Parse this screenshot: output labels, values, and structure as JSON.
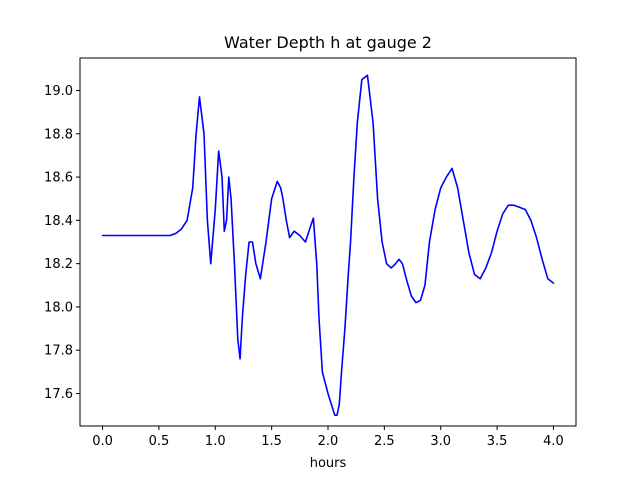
{
  "chart_data": {
    "type": "line",
    "title": "Water Depth h at gauge 2",
    "xlabel": "hours",
    "ylabel": "",
    "xlim": [
      -0.2,
      4.2
    ],
    "ylim": [
      17.45,
      19.15
    ],
    "x_ticks": [
      0.0,
      0.5,
      1.0,
      1.5,
      2.0,
      2.5,
      3.0,
      3.5,
      4.0
    ],
    "x_tick_labels": [
      "0.0",
      "0.5",
      "1.0",
      "1.5",
      "2.0",
      "2.5",
      "3.0",
      "3.5",
      "4.0"
    ],
    "y_ticks": [
      17.6,
      17.8,
      18.0,
      18.2,
      18.4,
      18.6,
      18.8,
      19.0
    ],
    "y_tick_labels": [
      "17.6",
      "17.8",
      "18.0",
      "18.2",
      "18.4",
      "18.6",
      "18.8",
      "19.0"
    ],
    "grid": false,
    "legend": "none",
    "colors": {
      "series": "#0000ff",
      "axes": "#000000",
      "background": "#ffffff"
    },
    "series": [
      {
        "x": [
          0.0,
          0.6,
          0.65,
          0.7,
          0.75,
          0.8,
          0.83,
          0.86,
          0.9,
          0.93,
          0.96,
          1.0,
          1.03,
          1.06,
          1.08,
          1.1,
          1.12,
          1.14,
          1.17,
          1.2,
          1.22,
          1.24,
          1.27,
          1.3,
          1.33,
          1.36,
          1.4,
          1.45,
          1.5,
          1.55,
          1.58,
          1.6,
          1.63,
          1.66,
          1.7,
          1.75,
          1.8,
          1.85,
          1.87,
          1.9,
          1.92,
          1.95,
          2.0,
          2.03,
          2.06,
          2.08,
          2.1,
          2.12,
          2.15,
          2.18,
          2.2,
          2.23,
          2.26,
          2.3,
          2.35,
          2.4,
          2.44,
          2.48,
          2.52,
          2.56,
          2.6,
          2.63,
          2.66,
          2.7,
          2.74,
          2.78,
          2.82,
          2.86,
          2.9,
          2.95,
          3.0,
          3.05,
          3.1,
          3.15,
          3.2,
          3.25,
          3.3,
          3.35,
          3.4,
          3.45,
          3.5,
          3.55,
          3.6,
          3.65,
          3.7,
          3.75,
          3.8,
          3.85,
          3.9,
          3.95,
          4.0
        ],
        "y": [
          18.33,
          18.33,
          18.34,
          18.36,
          18.4,
          18.55,
          18.8,
          18.97,
          18.8,
          18.4,
          18.2,
          18.45,
          18.72,
          18.6,
          18.35,
          18.4,
          18.6,
          18.5,
          18.2,
          17.85,
          17.76,
          17.95,
          18.15,
          18.3,
          18.3,
          18.2,
          18.13,
          18.3,
          18.5,
          18.58,
          18.55,
          18.5,
          18.4,
          18.32,
          18.35,
          18.33,
          18.3,
          18.38,
          18.41,
          18.2,
          17.95,
          17.7,
          17.6,
          17.55,
          17.5,
          17.5,
          17.55,
          17.7,
          17.9,
          18.15,
          18.3,
          18.6,
          18.85,
          19.05,
          19.07,
          18.85,
          18.5,
          18.3,
          18.2,
          18.18,
          18.2,
          18.22,
          18.2,
          18.12,
          18.05,
          18.02,
          18.03,
          18.1,
          18.3,
          18.45,
          18.55,
          18.6,
          18.64,
          18.55,
          18.4,
          18.25,
          18.15,
          18.13,
          18.18,
          18.25,
          18.35,
          18.43,
          18.47,
          18.47,
          18.46,
          18.45,
          18.4,
          18.32,
          18.22,
          18.13,
          18.11
        ]
      }
    ]
  }
}
